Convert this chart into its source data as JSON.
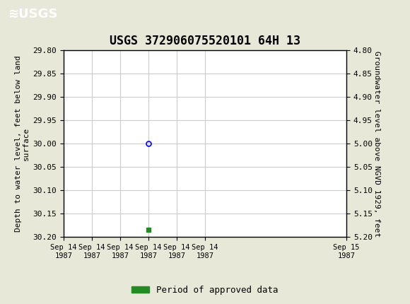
{
  "title": "USGS 372906075520101 64H 13",
  "ylabel_left": "Depth to water level, feet below land\nsurface",
  "ylabel_right": "Groundwater level above NGVD 1929, feet",
  "ylim_left": [
    29.8,
    30.2
  ],
  "ylim_right": [
    4.8,
    5.2
  ],
  "yticks_left": [
    29.8,
    29.85,
    29.9,
    29.95,
    30.0,
    30.05,
    30.1,
    30.15,
    30.2
  ],
  "yticks_right": [
    4.8,
    4.85,
    4.9,
    4.95,
    5.0,
    5.05,
    5.1,
    5.15,
    5.2
  ],
  "data_point_y": 30.0,
  "green_square_y": 30.185,
  "data_point_hour": 7.2,
  "green_square_hour": 7.2,
  "x_tick_hours": [
    0,
    2.4,
    4.8,
    7.2,
    9.6,
    12.0,
    24.0
  ],
  "x_tick_labels": [
    "Sep 14\n1987",
    "Sep 14\n1987",
    "Sep 14\n1987",
    "Sep 14\n1987",
    "Sep 14\n1987",
    "Sep 14\n1987",
    "Sep 15\n1987"
  ],
  "header_color": "#1a7a40",
  "grid_color": "#cccccc",
  "bg_color": "#e8e8d8",
  "plot_bg_color": "#ffffff",
  "legend_label": "Period of approved data",
  "legend_color": "#228B22",
  "title_fontsize": 12,
  "axis_label_fontsize": 8,
  "tick_fontsize": 8,
  "font_family": "monospace"
}
